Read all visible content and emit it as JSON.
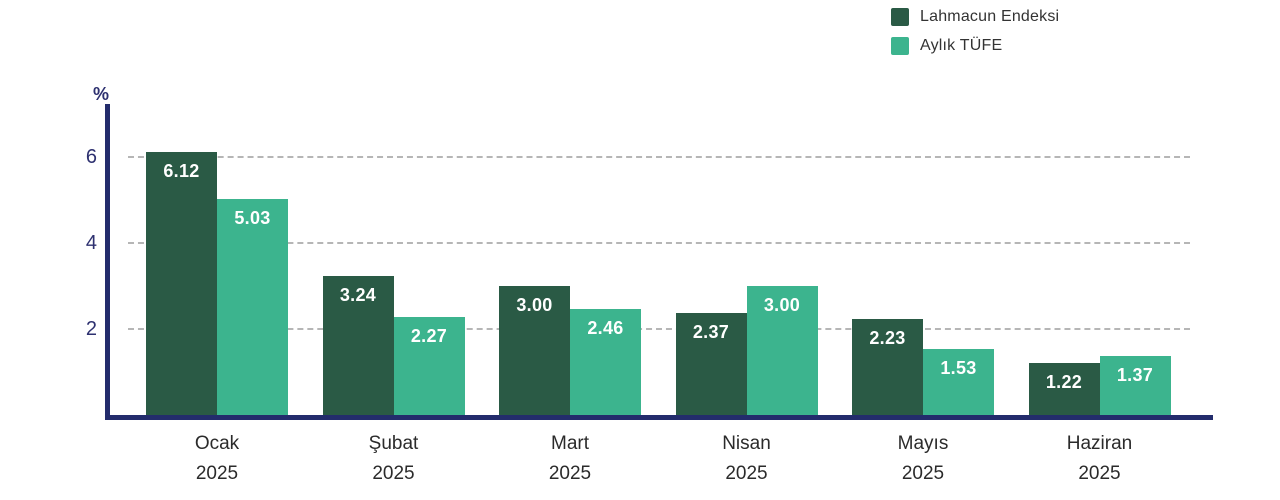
{
  "chart_data": {
    "type": "bar",
    "title": "",
    "categories": [
      {
        "month": "Ocak",
        "year": "2025"
      },
      {
        "month": "Şubat",
        "year": "2025"
      },
      {
        "month": "Mart",
        "year": "2025"
      },
      {
        "month": "Nisan",
        "year": "2025"
      },
      {
        "month": "Mayıs",
        "year": "2025"
      },
      {
        "month": "Haziran",
        "year": "2025"
      }
    ],
    "series": [
      {
        "name": "Lahmacun Endeksi",
        "color": "#2a5a45",
        "values": [
          6.12,
          3.24,
          3.0,
          2.37,
          2.23,
          1.22
        ],
        "labels": [
          "6.12",
          "3.24",
          "3.00",
          "2.37",
          "2.23",
          "1.22"
        ]
      },
      {
        "name": "Aylık TÜFE",
        "color": "#3cb48e",
        "values": [
          5.03,
          2.27,
          2.46,
          3.0,
          1.53,
          1.37
        ],
        "labels": [
          "5.03",
          "2.27",
          "2.46",
          "3.00",
          "1.53",
          "1.37"
        ]
      }
    ],
    "ylabel": "%",
    "xlabel": "",
    "yticks": [
      2,
      4,
      6
    ],
    "ylim": [
      0,
      7.1
    ],
    "grid": "horizontal-dashed",
    "legend_position": "top-right"
  },
  "colors": {
    "axis": "#232c6c",
    "gridline": "#b6b6b6",
    "tick_label": "#2e3170",
    "x_label": "#2b2b2b",
    "value_label": "#ffffff",
    "legend_text": "#333333",
    "background": "#ffffff"
  }
}
